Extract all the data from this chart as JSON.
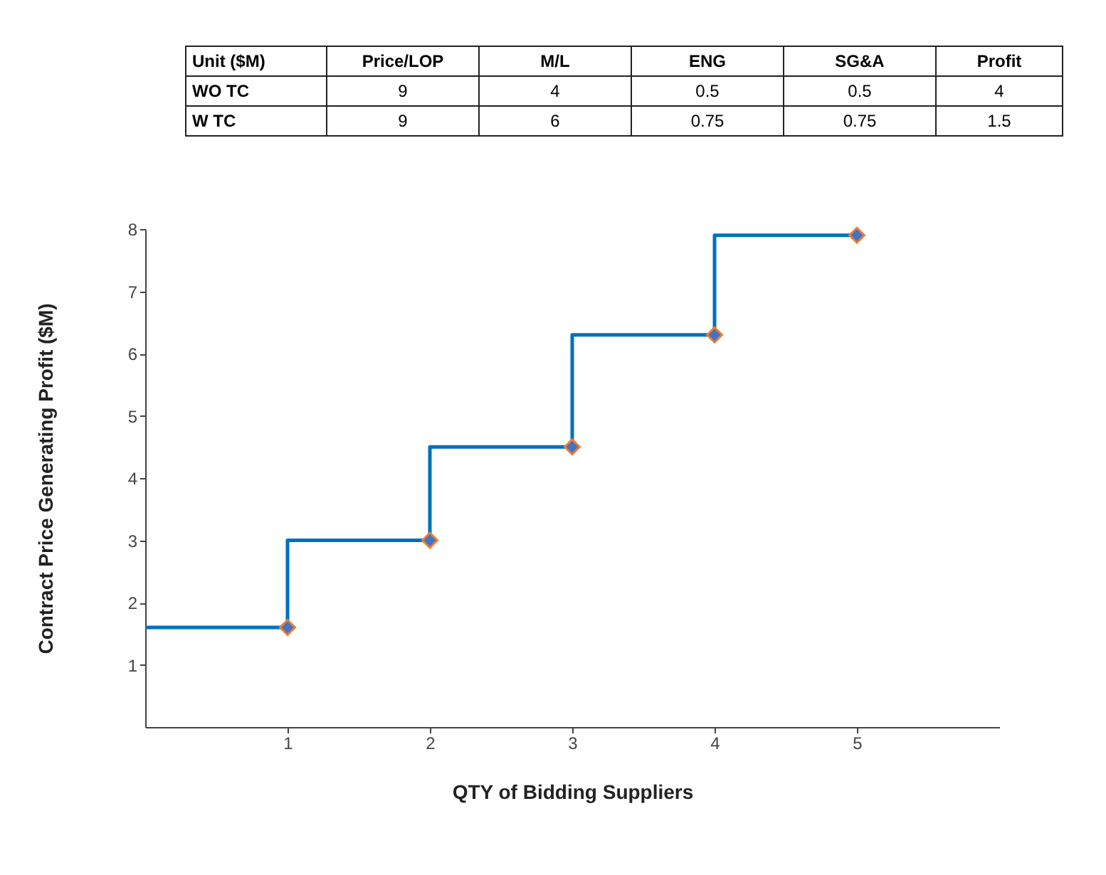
{
  "chart_data": {
    "type": "step",
    "xlabel": "QTY of Bidding Suppliers",
    "ylabel": "Contract Price Generating Profit ($M)",
    "annotations": [
      "Unit ($M)",
      "Price/LOP",
      "M/L",
      "ENG",
      "SG&A",
      "Profit",
      "WO TC",
      "9",
      "4",
      "0.5",
      "0.5",
      "4",
      "W TC",
      "9",
      "6",
      "0.75",
      "0.75",
      "1.5"
    ],
    "xlim": [
      0,
      6
    ],
    "xticks": [
      1,
      2,
      3,
      4,
      5
    ],
    "ylim": [
      0,
      8
    ],
    "yticks": [
      1,
      2,
      3,
      4,
      5,
      6,
      7,
      8
    ],
    "grid": false,
    "series": [
      {
        "color": "#0070c0",
        "x": [
          0,
          1,
          2,
          3,
          4,
          5
        ],
        "values": [
          1.6,
          1.6,
          3.0,
          4.5,
          6.3,
          7.9
        ],
        "marker": "none"
      },
      {
        "type": "scatter",
        "color": "#4472c4",
        "x": [
          1,
          2,
          3,
          4,
          5
        ],
        "values": [
          1.6,
          3.0,
          4.5,
          6.3,
          7.9
        ],
        "marker": "diamond"
      }
    ]
  }
}
